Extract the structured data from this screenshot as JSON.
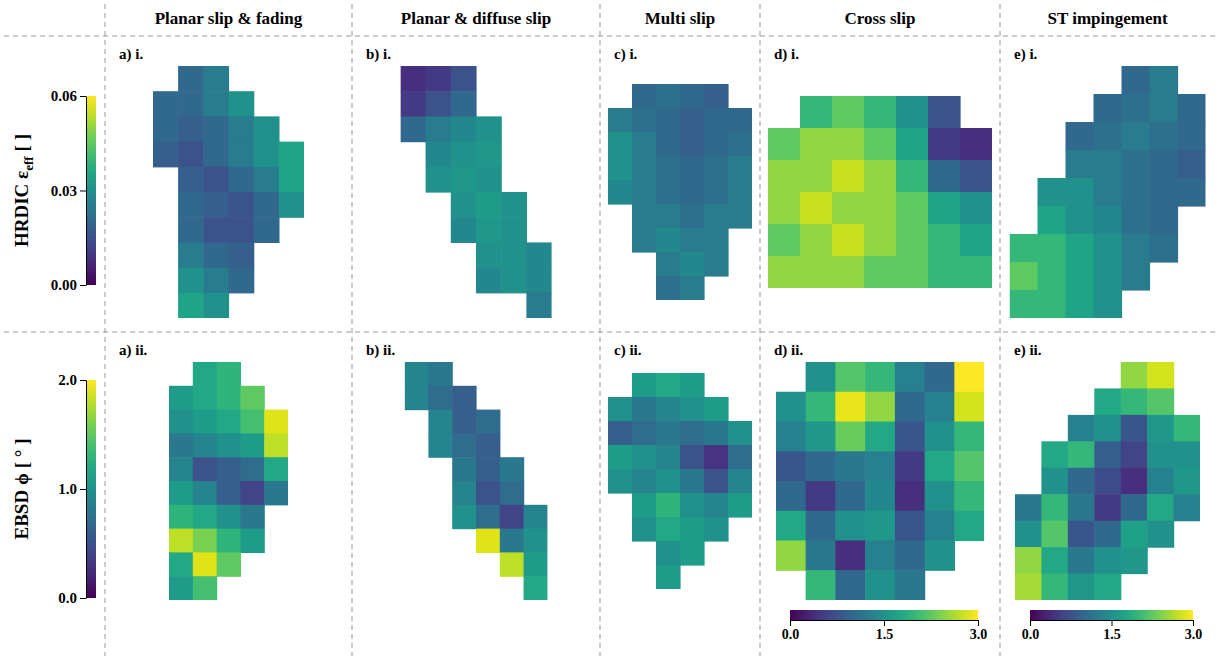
{
  "chart_data": {
    "type": "heatmap",
    "rows": [
      {
        "label": "HRDIC ε",
        "label_sub": "eff",
        "unit": "[ ]",
        "colorbar": {
          "range": [
            0,
            0.06
          ],
          "ticks": [
            {
              "value": 0,
              "label": "0.00"
            },
            {
              "value": 0.03,
              "label": "0.03"
            },
            {
              "value": 0.06,
              "label": "0.06"
            }
          ]
        }
      },
      {
        "label": "EBSD ϕ",
        "unit": "[ ° ]",
        "colorbar": {
          "range": [
            0,
            2
          ],
          "ticks": [
            {
              "value": 0,
              "label": "0.0"
            },
            {
              "value": 1,
              "label": "1.0"
            },
            {
              "value": 2,
              "label": "2.0"
            }
          ]
        }
      }
    ],
    "columns": [
      {
        "title": "Planar slip & fading",
        "panels": [
          {
            "label": "a) i.",
            "cells": [
              [
                null,
                0.02,
                0.025,
                null,
                null,
                null
              ],
              [
                0.02,
                0.02,
                0.025,
                0.03,
                null,
                null
              ],
              [
                0.02,
                0.018,
                0.02,
                0.025,
                0.03,
                null
              ],
              [
                0.018,
                0.015,
                0.02,
                0.025,
                0.03,
                0.035
              ],
              [
                null,
                0.018,
                0.015,
                0.02,
                0.025,
                0.035
              ],
              [
                null,
                0.02,
                0.018,
                0.015,
                0.02,
                0.03
              ],
              [
                null,
                0.02,
                0.015,
                0.015,
                0.02,
                null
              ],
              [
                null,
                0.025,
                0.02,
                0.018,
                null,
                null
              ],
              [
                null,
                0.03,
                0.025,
                0.02,
                null,
                null
              ],
              [
                null,
                0.035,
                0.03,
                null,
                null,
                null
              ]
            ]
          },
          {
            "label": "a) ii.",
            "cells": [
              [
                null,
                1.2,
                1.3,
                null,
                null
              ],
              [
                1.1,
                1.2,
                1.3,
                1.5,
                null
              ],
              [
                1.0,
                1.1,
                1.2,
                1.4,
                1.9
              ],
              [
                0.8,
                0.9,
                1.0,
                1.1,
                1.8
              ],
              [
                0.9,
                0.5,
                0.6,
                0.7,
                1.2
              ],
              [
                1.1,
                0.9,
                0.6,
                0.4,
                0.8
              ],
              [
                1.3,
                1.2,
                1.0,
                0.8,
                null
              ],
              [
                1.8,
                1.6,
                1.3,
                1.1,
                null
              ],
              [
                1.2,
                1.9,
                1.5,
                null,
                null
              ],
              [
                1.1,
                1.4,
                null,
                null,
                null
              ]
            ]
          }
        ]
      },
      {
        "title": "Planar & diffuse slip",
        "panels": [
          {
            "label": "b) i.",
            "cells": [
              [
                0.008,
                0.01,
                0.015,
                null,
                null,
                null
              ],
              [
                0.01,
                0.015,
                0.02,
                null,
                null,
                null
              ],
              [
                0.02,
                0.025,
                0.028,
                0.03,
                null,
                null
              ],
              [
                null,
                0.028,
                0.03,
                0.032,
                null,
                null
              ],
              [
                null,
                0.03,
                0.032,
                0.03,
                null,
                null
              ],
              [
                null,
                null,
                0.03,
                0.033,
                0.03,
                null
              ],
              [
                null,
                null,
                0.028,
                0.032,
                0.03,
                null
              ],
              [
                null,
                null,
                null,
                0.03,
                0.03,
                0.028
              ],
              [
                null,
                null,
                null,
                0.028,
                0.03,
                0.028
              ],
              [
                null,
                null,
                null,
                null,
                null,
                0.025
              ]
            ]
          },
          {
            "label": "b) ii.",
            "cells": [
              [
                0.9,
                0.8,
                null,
                null,
                null,
                null
              ],
              [
                0.9,
                0.7,
                0.6,
                null,
                null,
                null
              ],
              [
                null,
                0.9,
                0.6,
                0.7,
                null,
                null
              ],
              [
                null,
                0.9,
                0.7,
                0.6,
                null,
                null
              ],
              [
                null,
                null,
                0.8,
                0.6,
                0.8,
                null
              ],
              [
                null,
                null,
                0.9,
                0.5,
                0.7,
                null
              ],
              [
                null,
                null,
                1.0,
                0.7,
                0.4,
                0.9
              ],
              [
                null,
                null,
                null,
                1.9,
                0.8,
                1.0
              ],
              [
                null,
                null,
                null,
                null,
                1.8,
                1.1
              ],
              [
                null,
                null,
                null,
                null,
                null,
                1.2
              ]
            ]
          }
        ]
      },
      {
        "title": "Multi slip",
        "panels": [
          {
            "label": "c) i.",
            "cells": [
              [
                null,
                0.02,
                0.022,
                0.02,
                0.018,
                null
              ],
              [
                0.025,
                0.022,
                0.02,
                0.018,
                0.02,
                0.02
              ],
              [
                0.03,
                0.025,
                0.02,
                0.018,
                0.02,
                0.022
              ],
              [
                0.03,
                0.025,
                0.022,
                0.02,
                0.022,
                0.025
              ],
              [
                0.028,
                0.025,
                0.022,
                0.02,
                0.022,
                0.025
              ],
              [
                null,
                0.025,
                0.025,
                0.022,
                0.025,
                0.025
              ],
              [
                null,
                0.025,
                0.028,
                0.025,
                0.025,
                null
              ],
              [
                null,
                null,
                0.025,
                0.028,
                0.025,
                null
              ],
              [
                null,
                null,
                0.022,
                0.025,
                null,
                null
              ]
            ]
          },
          {
            "label": "c) ii.",
            "cells": [
              [
                null,
                1.1,
                1.2,
                1.1,
                null,
                null
              ],
              [
                1.0,
                0.8,
                0.9,
                1.0,
                1.1,
                null
              ],
              [
                0.6,
                0.7,
                0.8,
                0.7,
                0.8,
                1.0
              ],
              [
                1.1,
                1.0,
                0.9,
                0.5,
                0.3,
                0.7
              ],
              [
                1.0,
                0.9,
                1.0,
                0.8,
                0.5,
                0.9
              ],
              [
                null,
                1.1,
                1.3,
                1.0,
                0.9,
                1.1
              ],
              [
                null,
                1.0,
                1.2,
                1.1,
                1.0,
                null
              ],
              [
                null,
                null,
                1.0,
                1.1,
                null,
                null
              ],
              [
                null,
                null,
                1.1,
                null,
                null,
                null
              ]
            ]
          }
        ]
      },
      {
        "title": "Cross slip",
        "panels": [
          {
            "label": "d) i.",
            "cells": [
              [
                null,
                0.04,
                0.045,
                0.04,
                0.03,
                0.015,
                null
              ],
              [
                0.045,
                0.05,
                0.05,
                0.045,
                0.035,
                0.01,
                0.008
              ],
              [
                0.05,
                0.05,
                0.055,
                0.05,
                0.04,
                0.02,
                0.015
              ],
              [
                0.05,
                0.055,
                0.05,
                0.05,
                0.045,
                0.035,
                0.03
              ],
              [
                0.045,
                0.05,
                0.055,
                0.05,
                0.045,
                0.04,
                0.035
              ],
              [
                0.05,
                0.05,
                0.05,
                0.045,
                0.045,
                0.04,
                0.04
              ]
            ]
          },
          {
            "label": "d) ii.",
            "colorbar": {
              "range": [
                0,
                3
              ],
              "ticks": [
                {
                  "value": 0,
                  "label": "0.0"
                },
                {
                  "value": 1.5,
                  "label": "1.5"
                },
                {
                  "value": 3,
                  "label": "3.0"
                }
              ]
            },
            "cells": [
              [
                null,
                1.5,
                2.2,
                2.0,
                1.3,
                1.0,
                3.0
              ],
              [
                1.5,
                2.0,
                2.9,
                2.5,
                1.0,
                1.3,
                2.8
              ],
              [
                1.3,
                1.6,
                2.3,
                1.8,
                0.8,
                1.5,
                2.0
              ],
              [
                0.8,
                1.0,
                1.2,
                1.3,
                0.5,
                1.8,
                2.2
              ],
              [
                1.0,
                0.5,
                1.0,
                1.4,
                0.4,
                1.5,
                2.0
              ],
              [
                1.8,
                1.0,
                1.5,
                1.6,
                0.8,
                1.3,
                1.8
              ],
              [
                2.5,
                1.2,
                0.4,
                1.3,
                1.0,
                1.5,
                null
              ],
              [
                null,
                2.0,
                1.0,
                1.5,
                1.2,
                null,
                null
              ]
            ]
          }
        ]
      },
      {
        "title": "ST impingement",
        "panels": [
          {
            "label": "e) i.",
            "cells": [
              [
                null,
                null,
                null,
                null,
                0.02,
                0.025,
                null
              ],
              [
                null,
                null,
                null,
                0.02,
                0.022,
                0.025,
                0.02
              ],
              [
                null,
                null,
                0.02,
                0.022,
                0.025,
                0.022,
                0.02
              ],
              [
                null,
                null,
                0.025,
                0.025,
                0.022,
                0.02,
                0.018
              ],
              [
                null,
                0.03,
                0.03,
                0.025,
                0.022,
                0.02,
                0.02
              ],
              [
                null,
                0.035,
                0.03,
                0.028,
                0.022,
                0.02,
                null
              ],
              [
                0.04,
                0.04,
                0.035,
                0.03,
                0.025,
                0.022,
                null
              ],
              [
                0.045,
                0.04,
                0.035,
                0.03,
                0.025,
                null,
                null
              ],
              [
                0.04,
                0.04,
                0.035,
                0.03,
                null,
                null,
                null
              ]
            ]
          },
          {
            "label": "e) ii.",
            "colorbar": {
              "range": [
                0,
                3
              ],
              "ticks": [
                {
                  "value": 0,
                  "label": "0.0"
                },
                {
                  "value": 1.5,
                  "label": "1.5"
                },
                {
                  "value": 3,
                  "label": "3.0"
                }
              ]
            },
            "cells": [
              [
                null,
                null,
                null,
                null,
                2.5,
                2.8,
                null
              ],
              [
                null,
                null,
                null,
                1.8,
                2.0,
                2.2,
                null
              ],
              [
                null,
                null,
                1.3,
                1.5,
                0.8,
                1.6,
                2.0
              ],
              [
                null,
                1.8,
                2.0,
                0.9,
                0.6,
                1.5,
                1.5
              ],
              [
                null,
                1.5,
                1.0,
                0.7,
                0.4,
                1.3,
                1.6
              ],
              [
                1.2,
                2.0,
                1.2,
                0.5,
                1.0,
                1.8,
                1.3
              ],
              [
                1.5,
                2.2,
                0.8,
                1.0,
                1.7,
                1.5,
                null
              ],
              [
                2.5,
                1.8,
                1.2,
                1.5,
                1.6,
                null,
                null
              ],
              [
                2.6,
                2.0,
                1.6,
                1.8,
                null,
                null,
                null
              ]
            ]
          }
        ]
      }
    ]
  }
}
